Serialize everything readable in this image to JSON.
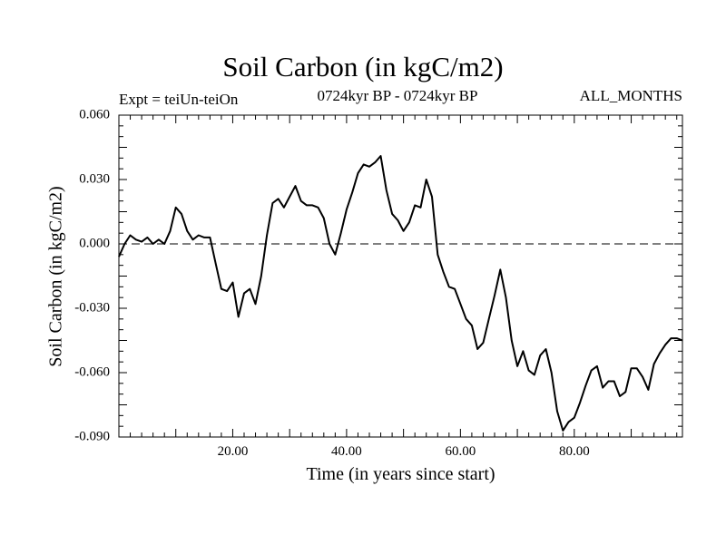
{
  "chart_data": {
    "type": "line",
    "title": "Soil Carbon (in kgC/m2)",
    "subtitle_left": "Expt = teiUn-teiOn",
    "subtitle_center": "0724kyr BP - 0724kyr BP",
    "subtitle_right": "ALL_MONTHS",
    "xlabel": "Time (in years since start)",
    "ylabel": "Soil Carbon (in kgC/m2)",
    "xlim": [
      0,
      99
    ],
    "ylim": [
      -0.09,
      0.06
    ],
    "xticks": [
      20,
      40,
      60,
      80
    ],
    "xtick_labels": [
      "20.00",
      "40.00",
      "60.00",
      "80.00"
    ],
    "yticks": [
      0.06,
      0.03,
      0.0,
      -0.03,
      -0.06,
      -0.09
    ],
    "ytick_labels": [
      "0.060",
      "0.030",
      "0.000",
      "-0.030",
      "-0.060",
      "-0.090"
    ],
    "reference_line": 0.0,
    "series": [
      {
        "name": "Soil Carbon",
        "x": [
          0,
          1,
          2,
          3,
          4,
          5,
          6,
          7,
          8,
          9,
          10,
          11,
          12,
          13,
          14,
          15,
          16,
          17,
          18,
          19,
          20,
          21,
          22,
          23,
          24,
          25,
          26,
          27,
          28,
          29,
          30,
          31,
          32,
          33,
          34,
          35,
          36,
          37,
          38,
          39,
          40,
          41,
          42,
          43,
          44,
          45,
          46,
          47,
          48,
          49,
          50,
          51,
          52,
          53,
          54,
          55,
          56,
          57,
          58,
          59,
          60,
          61,
          62,
          63,
          64,
          65,
          66,
          67,
          68,
          69,
          70,
          71,
          72,
          73,
          74,
          75,
          76,
          77,
          78,
          79,
          80,
          81,
          82,
          83,
          84,
          85,
          86,
          87,
          88,
          89,
          90,
          91,
          92,
          93,
          94,
          95,
          96,
          97,
          98,
          99
        ],
        "values": [
          -0.006,
          0.0,
          0.004,
          0.002,
          0.001,
          0.003,
          0.0,
          0.002,
          0.0,
          0.006,
          0.017,
          0.014,
          0.006,
          0.002,
          0.004,
          0.003,
          0.003,
          -0.009,
          -0.021,
          -0.022,
          -0.018,
          -0.034,
          -0.023,
          -0.021,
          -0.028,
          -0.015,
          0.004,
          0.019,
          0.021,
          0.017,
          0.022,
          0.027,
          0.02,
          0.018,
          0.018,
          0.017,
          0.012,
          0.0,
          -0.005,
          0.005,
          0.016,
          0.024,
          0.033,
          0.037,
          0.036,
          0.038,
          0.041,
          0.025,
          0.014,
          0.011,
          0.006,
          0.01,
          0.018,
          0.017,
          0.03,
          0.022,
          -0.005,
          -0.013,
          -0.02,
          -0.021,
          -0.028,
          -0.035,
          -0.038,
          -0.049,
          -0.046,
          -0.035,
          -0.024,
          -0.012,
          -0.025,
          -0.045,
          -0.057,
          -0.05,
          -0.059,
          -0.061,
          -0.052,
          -0.049,
          -0.06,
          -0.078,
          -0.087,
          -0.083,
          -0.081,
          -0.074,
          -0.066,
          -0.059,
          -0.057,
          -0.067,
          -0.064,
          -0.064,
          -0.071,
          -0.069,
          -0.058,
          -0.058,
          -0.062,
          -0.068,
          -0.056,
          -0.051,
          -0.047,
          -0.044,
          -0.044,
          -0.045
        ]
      }
    ]
  }
}
